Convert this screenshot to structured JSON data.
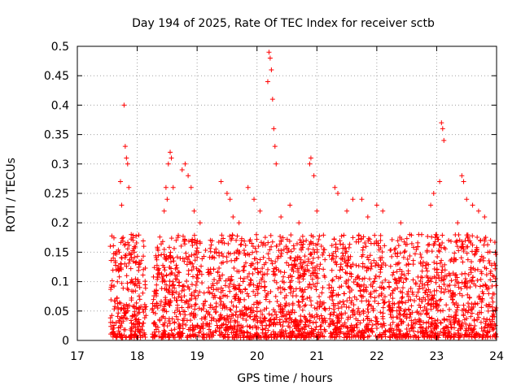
{
  "chart_data": {
    "type": "scatter",
    "title": "Day 194 of 2025, Rate Of TEC Index for receiver sctb",
    "xlabel": "GPS time / hours",
    "ylabel": "ROTI / TECUs",
    "xlim": [
      17,
      24
    ],
    "ylim": [
      0,
      0.5
    ],
    "xticks": [
      17,
      18,
      19,
      20,
      21,
      22,
      23,
      24
    ],
    "yticks": [
      0,
      0.05,
      0.1,
      0.15,
      0.2,
      0.25,
      0.3,
      0.35,
      0.4,
      0.45,
      0.5
    ],
    "ytick_labels": [
      "0",
      "0.05",
      "0.1",
      "0.15",
      "0.2",
      "0.25",
      "0.3",
      "0.35",
      "0.4",
      "0.45",
      "0.5"
    ],
    "grid": true,
    "marker": "+",
    "color": "#ff0000",
    "series": [
      {
        "name": "ROTI",
        "points": [
          [
            17.55,
            0.16
          ],
          [
            17.6,
            0.14
          ],
          [
            17.65,
            0.12
          ],
          [
            17.7,
            0.15
          ],
          [
            17.72,
            0.27
          ],
          [
            17.74,
            0.23
          ],
          [
            17.78,
            0.4
          ],
          [
            17.8,
            0.33
          ],
          [
            17.82,
            0.31
          ],
          [
            17.84,
            0.3
          ],
          [
            17.86,
            0.26
          ],
          [
            17.9,
            0.18
          ],
          [
            17.93,
            0.17
          ],
          [
            18.45,
            0.22
          ],
          [
            18.48,
            0.26
          ],
          [
            18.5,
            0.24
          ],
          [
            18.52,
            0.3
          ],
          [
            18.55,
            0.32
          ],
          [
            18.57,
            0.31
          ],
          [
            18.6,
            0.26
          ],
          [
            18.65,
            0.17
          ],
          [
            18.75,
            0.29
          ],
          [
            18.8,
            0.3
          ],
          [
            18.85,
            0.28
          ],
          [
            18.9,
            0.26
          ],
          [
            18.95,
            0.22
          ],
          [
            19.05,
            0.2
          ],
          [
            19.4,
            0.27
          ],
          [
            19.5,
            0.25
          ],
          [
            19.55,
            0.24
          ],
          [
            19.6,
            0.21
          ],
          [
            19.7,
            0.2
          ],
          [
            19.85,
            0.26
          ],
          [
            19.95,
            0.24
          ],
          [
            20.05,
            0.22
          ],
          [
            20.18,
            0.44
          ],
          [
            20.2,
            0.49
          ],
          [
            20.22,
            0.48
          ],
          [
            20.24,
            0.46
          ],
          [
            20.26,
            0.41
          ],
          [
            20.28,
            0.36
          ],
          [
            20.3,
            0.33
          ],
          [
            20.32,
            0.3
          ],
          [
            20.4,
            0.21
          ],
          [
            20.55,
            0.23
          ],
          [
            20.7,
            0.2
          ],
          [
            20.88,
            0.3
          ],
          [
            20.9,
            0.31
          ],
          [
            20.95,
            0.28
          ],
          [
            21.0,
            0.22
          ],
          [
            21.3,
            0.26
          ],
          [
            21.35,
            0.25
          ],
          [
            21.5,
            0.22
          ],
          [
            21.6,
            0.24
          ],
          [
            21.75,
            0.24
          ],
          [
            21.85,
            0.21
          ],
          [
            22.0,
            0.23
          ],
          [
            22.1,
            0.22
          ],
          [
            22.4,
            0.2
          ],
          [
            22.55,
            0.18
          ],
          [
            22.7,
            0.18
          ],
          [
            22.9,
            0.23
          ],
          [
            22.95,
            0.25
          ],
          [
            23.05,
            0.27
          ],
          [
            23.08,
            0.37
          ],
          [
            23.1,
            0.36
          ],
          [
            23.12,
            0.34
          ],
          [
            23.2,
            0.17
          ],
          [
            23.35,
            0.2
          ],
          [
            23.42,
            0.28
          ],
          [
            23.45,
            0.27
          ],
          [
            23.5,
            0.24
          ],
          [
            23.6,
            0.23
          ],
          [
            23.7,
            0.22
          ],
          [
            23.8,
            0.21
          ],
          [
            23.9,
            0.17
          ],
          [
            23.98,
            0.15
          ]
        ],
        "dense_band_y": [
          0.005,
          0.18
        ],
        "dense_band_x": [
          [
            17.55,
            18.15
          ],
          [
            18.25,
            20.85
          ],
          [
            20.85,
            21.15
          ],
          [
            21.2,
            22.15
          ],
          [
            22.2,
            22.95
          ],
          [
            22.95,
            24.0
          ]
        ]
      }
    ]
  }
}
